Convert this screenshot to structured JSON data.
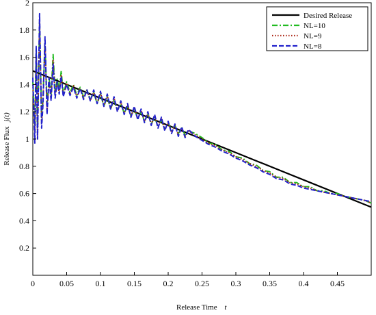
{
  "chart_data": {
    "type": "line",
    "title": "",
    "xlabel": "Release Time",
    "xlabel_var": "t",
    "ylabel": "Release Flux",
    "ylabel_var": "j(t)",
    "xlim": [
      0,
      0.5
    ],
    "ylim": [
      0,
      2
    ],
    "xticks": [
      0,
      0.05,
      0.1,
      0.15,
      0.2,
      0.25,
      0.3,
      0.35,
      0.4,
      0.45
    ],
    "xtick_labels": [
      "0",
      "0.05",
      "0.1",
      "0.15",
      "0.2",
      "0.25",
      "0.3",
      "0.35",
      "0.4",
      "0.45"
    ],
    "yticks": [
      0.2,
      0.4,
      0.6,
      0.8,
      1,
      1.2,
      1.4,
      1.6,
      1.8,
      2
    ],
    "ytick_labels": [
      "0.2",
      "0.4",
      "0.6",
      "0.8",
      "1",
      "1.2",
      "1.4",
      "1.6",
      "1.8",
      "2"
    ],
    "grid": false,
    "legend_position": "top-right",
    "series": [
      {
        "name": "Desired Release",
        "color": "#000000",
        "style": "solid",
        "x": [
          0,
          0.1,
          0.2,
          0.3,
          0.4,
          0.5
        ],
        "y": [
          1.5,
          1.3,
          1.1,
          0.9,
          0.7,
          0.5
        ]
      },
      {
        "name": "NL=10",
        "color": "#22bb22",
        "style": "dashdot",
        "x": [
          0,
          0.003,
          0.005,
          0.007,
          0.01,
          0.013,
          0.015,
          0.018,
          0.021,
          0.024,
          0.027,
          0.03,
          0.033,
          0.036,
          0.039,
          0.042,
          0.045,
          0.05,
          0.055,
          0.06,
          0.065,
          0.07,
          0.075,
          0.08,
          0.085,
          0.09,
          0.095,
          0.1,
          0.105,
          0.11,
          0.115,
          0.12,
          0.125,
          0.13,
          0.135,
          0.14,
          0.145,
          0.15,
          0.155,
          0.16,
          0.165,
          0.17,
          0.175,
          0.18,
          0.185,
          0.19,
          0.195,
          0.2,
          0.205,
          0.21,
          0.215,
          0.22,
          0.225,
          0.23,
          0.24,
          0.25,
          0.26,
          0.27,
          0.28,
          0.29,
          0.3,
          0.31,
          0.32,
          0.33,
          0.34,
          0.35,
          0.36,
          0.37,
          0.38,
          0.39,
          0.4,
          0.41,
          0.42,
          0.43,
          0.44,
          0.45,
          0.46,
          0.47,
          0.48,
          0.49,
          0.5
        ],
        "y": [
          1.42,
          1.1,
          1.65,
          1.05,
          1.85,
          1.15,
          1.3,
          1.7,
          1.25,
          1.45,
          1.33,
          1.62,
          1.34,
          1.44,
          1.36,
          1.5,
          1.33,
          1.42,
          1.34,
          1.4,
          1.32,
          1.38,
          1.31,
          1.36,
          1.29,
          1.34,
          1.26,
          1.33,
          1.24,
          1.31,
          1.22,
          1.29,
          1.21,
          1.26,
          1.19,
          1.24,
          1.17,
          1.22,
          1.15,
          1.2,
          1.13,
          1.18,
          1.11,
          1.16,
          1.09,
          1.14,
          1.07,
          1.12,
          1.06,
          1.1,
          1.04,
          1.08,
          1.03,
          1.06,
          1.04,
          1.01,
          0.97,
          0.96,
          0.92,
          0.91,
          0.87,
          0.86,
          0.82,
          0.81,
          0.77,
          0.76,
          0.72,
          0.72,
          0.68,
          0.68,
          0.65,
          0.65,
          0.62,
          0.62,
          0.6,
          0.6,
          0.58,
          0.57,
          0.56,
          0.55,
          0.53
        ]
      },
      {
        "name": "NL=9",
        "color": "#aa2211",
        "style": "dotted",
        "x": [
          0,
          0.003,
          0.005,
          0.007,
          0.01,
          0.013,
          0.015,
          0.018,
          0.021,
          0.024,
          0.027,
          0.03,
          0.033,
          0.036,
          0.039,
          0.042,
          0.045,
          0.05,
          0.055,
          0.06,
          0.065,
          0.07,
          0.075,
          0.08,
          0.085,
          0.09,
          0.095,
          0.1,
          0.105,
          0.11,
          0.115,
          0.12,
          0.125,
          0.13,
          0.135,
          0.14,
          0.145,
          0.15,
          0.155,
          0.16,
          0.165,
          0.17,
          0.175,
          0.18,
          0.185,
          0.19,
          0.195,
          0.2,
          0.205,
          0.21,
          0.215,
          0.22,
          0.225,
          0.23,
          0.24,
          0.25,
          0.26,
          0.27,
          0.28,
          0.29,
          0.3,
          0.31,
          0.32,
          0.33,
          0.34,
          0.35,
          0.36,
          0.37,
          0.38,
          0.39,
          0.4,
          0.41,
          0.42,
          0.43,
          0.44,
          0.45,
          0.46,
          0.47,
          0.48,
          0.49,
          0.5
        ],
        "y": [
          1.4,
          1.05,
          1.62,
          1.0,
          1.88,
          1.12,
          1.28,
          1.72,
          1.2,
          1.42,
          1.3,
          1.58,
          1.32,
          1.42,
          1.34,
          1.47,
          1.32,
          1.41,
          1.33,
          1.39,
          1.31,
          1.37,
          1.3,
          1.36,
          1.28,
          1.35,
          1.26,
          1.34,
          1.24,
          1.32,
          1.22,
          1.3,
          1.21,
          1.27,
          1.19,
          1.25,
          1.17,
          1.23,
          1.15,
          1.21,
          1.13,
          1.19,
          1.11,
          1.17,
          1.09,
          1.15,
          1.07,
          1.12,
          1.05,
          1.1,
          1.03,
          1.08,
          1.02,
          1.06,
          1.03,
          1.0,
          0.97,
          0.95,
          0.92,
          0.9,
          0.87,
          0.85,
          0.82,
          0.8,
          0.77,
          0.75,
          0.72,
          0.71,
          0.68,
          0.67,
          0.65,
          0.64,
          0.62,
          0.61,
          0.6,
          0.59,
          0.58,
          0.57,
          0.56,
          0.55,
          0.53
        ]
      },
      {
        "name": "NL=8",
        "color": "#2222cc",
        "style": "dashed",
        "x": [
          0,
          0.003,
          0.005,
          0.007,
          0.01,
          0.013,
          0.015,
          0.018,
          0.021,
          0.024,
          0.027,
          0.03,
          0.033,
          0.036,
          0.039,
          0.042,
          0.045,
          0.05,
          0.055,
          0.06,
          0.065,
          0.07,
          0.075,
          0.08,
          0.085,
          0.09,
          0.095,
          0.1,
          0.105,
          0.11,
          0.115,
          0.12,
          0.125,
          0.13,
          0.135,
          0.14,
          0.145,
          0.15,
          0.155,
          0.16,
          0.165,
          0.17,
          0.175,
          0.18,
          0.185,
          0.19,
          0.195,
          0.2,
          0.205,
          0.21,
          0.215,
          0.22,
          0.225,
          0.23,
          0.24,
          0.25,
          0.26,
          0.27,
          0.28,
          0.29,
          0.3,
          0.31,
          0.32,
          0.33,
          0.34,
          0.35,
          0.36,
          0.37,
          0.38,
          0.39,
          0.4,
          0.41,
          0.42,
          0.43,
          0.44,
          0.45,
          0.46,
          0.47,
          0.48,
          0.49,
          0.5
        ],
        "y": [
          1.45,
          0.97,
          1.68,
          1.0,
          1.92,
          1.08,
          1.25,
          1.75,
          1.18,
          1.45,
          1.28,
          1.55,
          1.3,
          1.42,
          1.33,
          1.46,
          1.31,
          1.4,
          1.32,
          1.38,
          1.3,
          1.37,
          1.29,
          1.36,
          1.28,
          1.36,
          1.26,
          1.35,
          1.24,
          1.33,
          1.22,
          1.31,
          1.2,
          1.28,
          1.18,
          1.26,
          1.16,
          1.24,
          1.14,
          1.22,
          1.12,
          1.2,
          1.1,
          1.18,
          1.08,
          1.16,
          1.06,
          1.13,
          1.04,
          1.11,
          1.02,
          1.09,
          1.01,
          1.07,
          1.02,
          0.99,
          0.96,
          0.94,
          0.91,
          0.89,
          0.86,
          0.84,
          0.81,
          0.79,
          0.76,
          0.74,
          0.71,
          0.7,
          0.67,
          0.66,
          0.64,
          0.63,
          0.62,
          0.61,
          0.6,
          0.59,
          0.58,
          0.57,
          0.56,
          0.55,
          0.54
        ]
      }
    ]
  }
}
